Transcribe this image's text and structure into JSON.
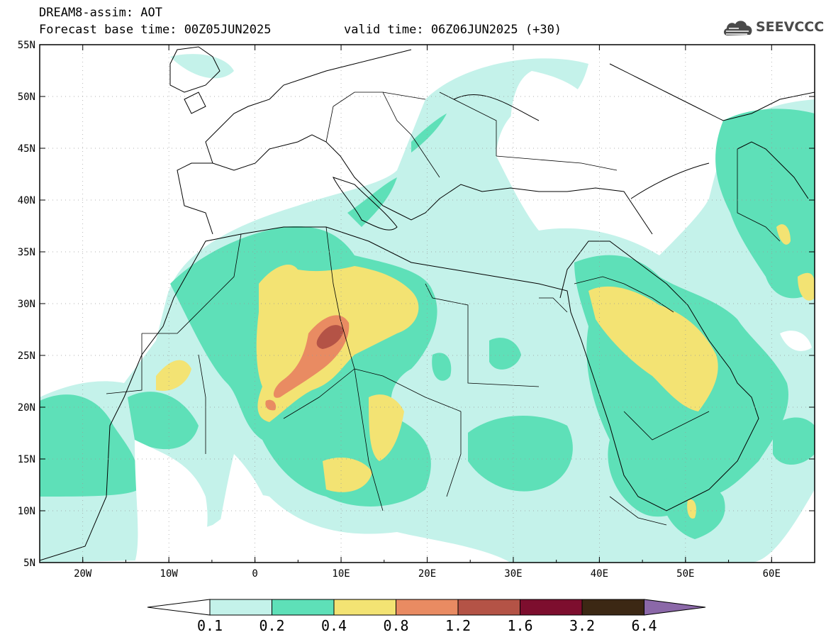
{
  "header": {
    "title_line_1": "DREAM8-assim: AOT",
    "title_line_2": "Forecast base time: 00Z05JUN2025",
    "valid_time": "valid time: 06Z06JUN2025 (+30)",
    "logo_text": "SEEVCCC"
  },
  "axes": {
    "lon_labels": [
      "20W",
      "10W",
      "0",
      "10E",
      "20E",
      "30E",
      "40E",
      "50E",
      "60E"
    ],
    "lat_labels": [
      "55N",
      "50N",
      "45N",
      "40N",
      "35N",
      "30N",
      "25N",
      "20N",
      "15N",
      "10N",
      "5N"
    ],
    "lon_range": [
      -25,
      65
    ],
    "lat_range": [
      5,
      55
    ]
  },
  "colorbar": {
    "labels": [
      "0.1",
      "0.2",
      "0.4",
      "0.8",
      "1.2",
      "1.6",
      "3.2",
      "6.4"
    ],
    "colors": [
      "#c4f2ea",
      "#5ee0b8",
      "#f3e373",
      "#e98b62",
      "#b45346",
      "#7d0e2e",
      "#3c2814",
      "#8b68a8"
    ]
  },
  "colors": {
    "aot_01_02": "#c4f2ea",
    "aot_02_04": "#5ee0b8",
    "aot_04_08": "#f3e373",
    "aot_08_12": "#e98b62",
    "aot_12_16": "#b45346"
  }
}
